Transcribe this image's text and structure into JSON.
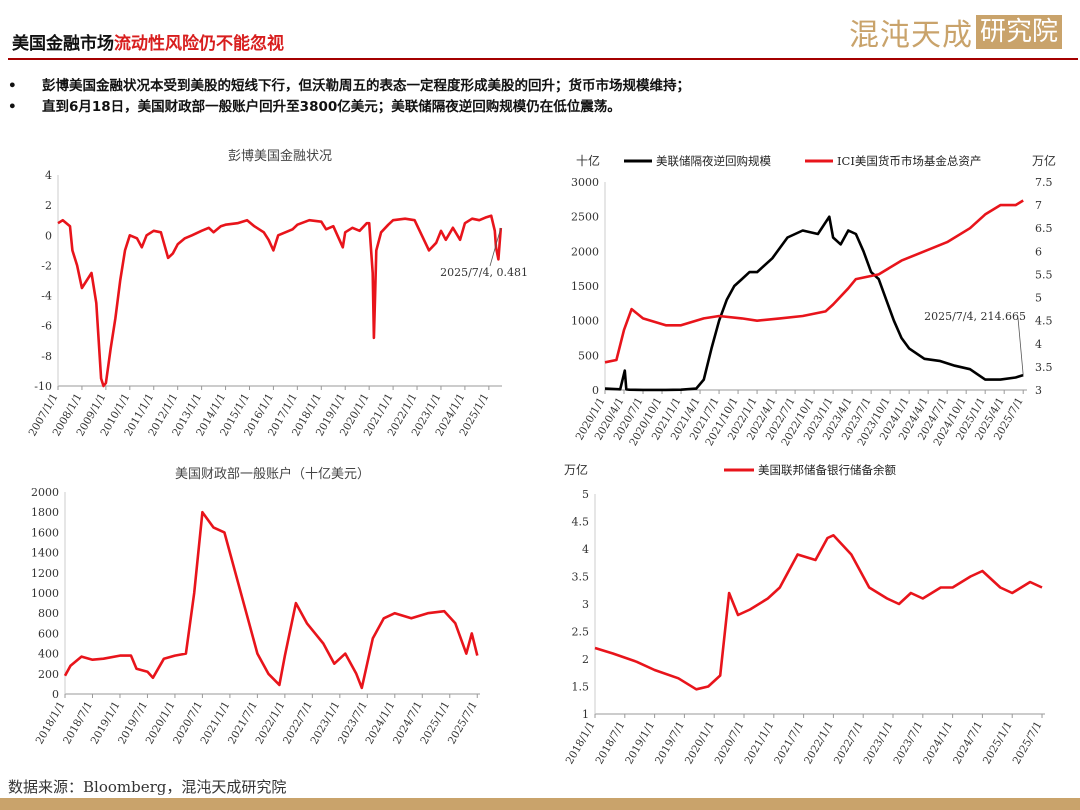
{
  "header": {
    "title_prefix": "美国金融市场",
    "title_highlight": "流动性风险仍不能忽视",
    "logo_text": "混沌天成",
    "logo_box_text": "研究院"
  },
  "bullets": [
    "彭博美国金融状况本受到美股的短线下行，但沃勒周五的表态一定程度形成美股的回升；货币市场规模维持；",
    "直到6月18日，美国财政部一般账户回升至3800亿美元；美联储隔夜逆回购规模仍在低位震荡。"
  ],
  "footer": {
    "source": "数据来源：Bloomberg，混沌天成研究院"
  },
  "colors": {
    "red_series": "#e8141b",
    "black_series": "#000000",
    "accent": "#a40000",
    "gold": "#c9a36b"
  },
  "chart_data": [
    {
      "type": "line",
      "title": "彭博美国金融状况",
      "x_ticks": [
        "2007/1/1",
        "2008/1/1",
        "2009/1/1",
        "2010/1/1",
        "2011/1/1",
        "2012/1/1",
        "2013/1/1",
        "2014/1/1",
        "2015/1/1",
        "2016/1/1",
        "2017/1/1",
        "2018/1/1",
        "2019/1/1",
        "2020/1/1",
        "2021/1/1",
        "2022/1/1",
        "2023/1/1",
        "2024/1/1",
        "2025/1/1"
      ],
      "x_range": [
        2007.0,
        2025.55
      ],
      "ylim": [
        -10,
        4
      ],
      "y_ticks": [
        4,
        2,
        0,
        -2,
        -4,
        -6,
        -8,
        -10
      ],
      "annotation": "2025/7/4, 0.481",
      "series": [
        {
          "color": "#e8141b",
          "x": [
            2007.0,
            2007.2,
            2007.5,
            2007.6,
            2007.8,
            2008.0,
            2008.2,
            2008.4,
            2008.6,
            2008.8,
            2008.9,
            2009.0,
            2009.2,
            2009.4,
            2009.6,
            2009.8,
            2010.0,
            2010.3,
            2010.5,
            2010.7,
            2011.0,
            2011.3,
            2011.6,
            2011.8,
            2012.0,
            2012.3,
            2012.6,
            2013.0,
            2013.3,
            2013.5,
            2013.8,
            2014.0,
            2014.5,
            2014.9,
            2015.2,
            2015.6,
            2015.8,
            2016.0,
            2016.2,
            2016.5,
            2016.8,
            2017.0,
            2017.5,
            2018.0,
            2018.2,
            2018.5,
            2018.9,
            2019.0,
            2019.3,
            2019.6,
            2019.9,
            2020.0,
            2020.15,
            2020.2,
            2020.25,
            2020.3,
            2020.5,
            2020.8,
            2021.0,
            2021.5,
            2021.9,
            2022.2,
            2022.5,
            2022.8,
            2023.0,
            2023.2,
            2023.5,
            2023.8,
            2024.0,
            2024.3,
            2024.6,
            2024.9,
            2025.1,
            2025.25,
            2025.3,
            2025.4,
            2025.5
          ],
          "y": [
            0.8,
            1.0,
            0.6,
            -1.0,
            -2.0,
            -3.5,
            -3.0,
            -2.5,
            -4.5,
            -9.5,
            -10.0,
            -9.8,
            -7.5,
            -5.5,
            -3.0,
            -1.0,
            0.0,
            -0.2,
            -0.8,
            0.0,
            0.3,
            0.2,
            -1.5,
            -1.2,
            -0.6,
            -0.2,
            0.0,
            0.3,
            0.5,
            0.2,
            0.6,
            0.7,
            0.8,
            1.0,
            0.6,
            0.2,
            -0.3,
            -1.0,
            0.0,
            0.2,
            0.4,
            0.7,
            1.0,
            0.9,
            0.4,
            0.6,
            -0.8,
            0.2,
            0.5,
            0.3,
            0.8,
            0.8,
            -2.5,
            -6.8,
            -4.0,
            -1.0,
            0.2,
            0.7,
            1.0,
            1.1,
            1.0,
            0.0,
            -1.0,
            -0.5,
            0.3,
            -0.3,
            0.5,
            -0.3,
            0.8,
            1.1,
            1.0,
            1.2,
            1.3,
            0.3,
            -0.8,
            -1.6,
            0.481
          ]
        }
      ]
    },
    {
      "type": "line",
      "title": "",
      "ylabel_left": "十亿",
      "ylabel_right": "万亿",
      "x_ticks": [
        "2020/1/1",
        "2020/4/1",
        "2020/7/1",
        "2020/10/1",
        "2021/1/1",
        "2021/4/1",
        "2021/7/1",
        "2021/10/1",
        "2022/1/1",
        "2022/4/1",
        "2022/7/1",
        "2022/10/1",
        "2023/1/1",
        "2023/4/1",
        "2023/7/1",
        "2023/10/1",
        "2024/1/1",
        "2024/4/1",
        "2024/7/1",
        "2024/10/1",
        "2025/1/1",
        "2025/4/1",
        "2025/7/1"
      ],
      "x_range": [
        2020.0,
        2025.55
      ],
      "ylim_left": [
        0,
        3000
      ],
      "ylim_right": [
        3,
        7.5
      ],
      "y_ticks_left": [
        3000,
        2500,
        2000,
        1500,
        1000,
        500,
        0
      ],
      "y_ticks_right": [
        7.5,
        7,
        6.5,
        6,
        5.5,
        5,
        4.5,
        4,
        3.5,
        3
      ],
      "annotation": "2025/7/4, 214.665",
      "series": [
        {
          "name": "美联储隔夜逆回购规模",
          "axis": "left",
          "color": "#000000",
          "x": [
            2020.0,
            2020.2,
            2020.26,
            2020.28,
            2020.32,
            2020.5,
            2020.8,
            2021.0,
            2021.2,
            2021.3,
            2021.4,
            2021.5,
            2021.6,
            2021.7,
            2021.8,
            2021.9,
            2022.0,
            2022.2,
            2022.4,
            2022.6,
            2022.8,
            2022.95,
            2023.0,
            2023.1,
            2023.2,
            2023.3,
            2023.4,
            2023.5,
            2023.6,
            2023.7,
            2023.8,
            2023.9,
            2024.0,
            2024.2,
            2024.4,
            2024.6,
            2024.8,
            2025.0,
            2025.2,
            2025.4,
            2025.5
          ],
          "y": [
            20,
            10,
            280,
            10,
            5,
            2,
            2,
            5,
            20,
            150,
            600,
            1000,
            1300,
            1500,
            1600,
            1700,
            1700,
            1900,
            2200,
            2300,
            2250,
            2500,
            2200,
            2100,
            2300,
            2250,
            2000,
            1700,
            1600,
            1300,
            1000,
            750,
            600,
            450,
            420,
            350,
            300,
            150,
            150,
            180,
            214.665
          ]
        },
        {
          "name": "ICI美国货币市场基金总资产",
          "axis": "right",
          "color": "#e8141b",
          "x": [
            2020.0,
            2020.15,
            2020.25,
            2020.35,
            2020.5,
            2020.8,
            2021.0,
            2021.3,
            2021.5,
            2021.8,
            2022.0,
            2022.3,
            2022.6,
            2022.9,
            2023.0,
            2023.2,
            2023.3,
            2023.6,
            2023.9,
            2024.2,
            2024.5,
            2024.8,
            2025.0,
            2025.2,
            2025.4,
            2025.5
          ],
          "y": [
            3.6,
            3.65,
            4.3,
            4.75,
            4.55,
            4.4,
            4.4,
            4.55,
            4.6,
            4.55,
            4.5,
            4.55,
            4.6,
            4.7,
            4.85,
            5.2,
            5.4,
            5.5,
            5.8,
            6.0,
            6.2,
            6.5,
            6.8,
            7.0,
            7.0,
            7.1
          ]
        }
      ]
    },
    {
      "type": "line",
      "title": "美国财政部一般账户（十亿美元）",
      "x_ticks": [
        "2018/1/1",
        "2018/7/1",
        "2019/1/1",
        "2019/7/1",
        "2020/1/1",
        "2020/7/1",
        "2021/1/1",
        "2021/7/1",
        "2022/1/1",
        "2022/7/1",
        "2023/1/1",
        "2023/7/1",
        "2024/1/1",
        "2024/7/1",
        "2025/1/1",
        "2025/7/1"
      ],
      "x_range": [
        2018.0,
        2025.55
      ],
      "ylim": [
        0,
        2000
      ],
      "y_ticks": [
        2000,
        1800,
        1600,
        1400,
        1200,
        1000,
        800,
        600,
        400,
        200,
        0
      ],
      "series": [
        {
          "color": "#e8141b",
          "x": [
            2018.0,
            2018.1,
            2018.3,
            2018.5,
            2018.7,
            2019.0,
            2019.2,
            2019.3,
            2019.5,
            2019.6,
            2019.8,
            2020.0,
            2020.2,
            2020.35,
            2020.5,
            2020.7,
            2020.9,
            2021.1,
            2021.3,
            2021.5,
            2021.7,
            2021.9,
            2022.0,
            2022.2,
            2022.4,
            2022.7,
            2022.9,
            2023.1,
            2023.3,
            2023.4,
            2023.6,
            2023.8,
            2024.0,
            2024.3,
            2024.6,
            2024.9,
            2025.1,
            2025.3,
            2025.4,
            2025.5
          ],
          "y": [
            180,
            280,
            370,
            340,
            350,
            380,
            380,
            250,
            220,
            160,
            350,
            380,
            400,
            1000,
            1800,
            1650,
            1600,
            1200,
            800,
            400,
            200,
            90,
            380,
            900,
            700,
            500,
            300,
            400,
            200,
            60,
            550,
            750,
            800,
            750,
            800,
            820,
            700,
            400,
            600,
            380
          ]
        }
      ]
    },
    {
      "type": "line",
      "title": "",
      "ylabel": "万亿",
      "x_ticks": [
        "2018/1/1",
        "2018/7/1",
        "2019/1/1",
        "2019/7/1",
        "2020/1/1",
        "2020/7/1",
        "2021/1/1",
        "2021/7/1",
        "2022/1/1",
        "2022/7/1",
        "2023/1/1",
        "2023/7/1",
        "2024/1/1",
        "2024/7/1",
        "2025/1/1",
        "2025/7/1"
      ],
      "x_range": [
        2018.0,
        2025.55
      ],
      "ylim": [
        1,
        5
      ],
      "y_ticks": [
        5,
        4.5,
        4,
        3.5,
        3,
        2.5,
        2,
        1.5,
        1
      ],
      "series": [
        {
          "name": "美国联邦储备银行储备余额",
          "color": "#e8141b",
          "x": [
            2018.0,
            2018.3,
            2018.7,
            2019.0,
            2019.4,
            2019.7,
            2019.9,
            2020.1,
            2020.25,
            2020.4,
            2020.6,
            2020.9,
            2021.1,
            2021.4,
            2021.7,
            2021.9,
            2022.0,
            2022.3,
            2022.6,
            2022.9,
            2023.1,
            2023.3,
            2023.5,
            2023.8,
            2024.0,
            2024.3,
            2024.5,
            2024.8,
            2025.0,
            2025.3,
            2025.5
          ],
          "y": [
            2.2,
            2.1,
            1.95,
            1.8,
            1.65,
            1.45,
            1.5,
            1.7,
            3.2,
            2.8,
            2.9,
            3.1,
            3.3,
            3.9,
            3.8,
            4.2,
            4.25,
            3.9,
            3.3,
            3.1,
            3.0,
            3.2,
            3.1,
            3.3,
            3.3,
            3.5,
            3.6,
            3.3,
            3.2,
            3.4,
            3.3
          ]
        }
      ]
    }
  ]
}
